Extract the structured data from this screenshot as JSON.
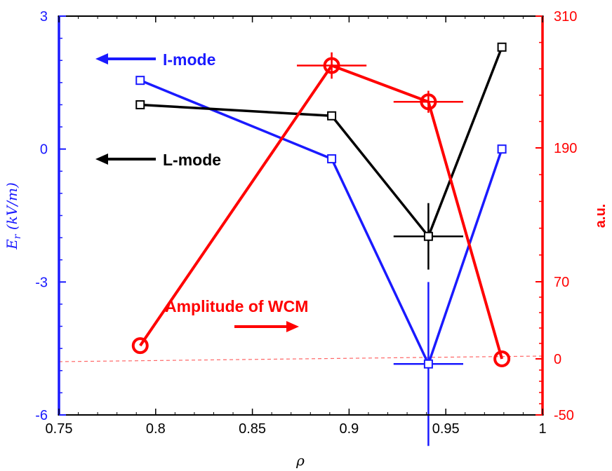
{
  "chart_data": {
    "type": "line",
    "title": "",
    "xlabel": "ρ",
    "ylabel_left_main": "E",
    "ylabel_left_sub": "r",
    "ylabel_left_unit": " (kV/m)",
    "ylabel_right": "a.u.",
    "xlim": [
      0.75,
      1.0
    ],
    "ylim_left": [
      -6,
      3
    ],
    "ylim_right": [
      -50,
      310
    ],
    "x_ticks": [
      "0.75",
      "0.8",
      "0.85",
      "0.9",
      "0.95",
      "1"
    ],
    "y_left_ticks": [
      "-6",
      "-3",
      "0",
      "3"
    ],
    "y_right_ticks": [
      "-50",
      "0",
      "70",
      "190",
      "310"
    ],
    "colors": {
      "left_axis": "#1a1aff",
      "right_axis": "#ff0000",
      "imode": "#1a1aff",
      "lmode": "#000000",
      "wcm": "#ff0000",
      "baseline": "#ff6666",
      "frame": "#000000"
    },
    "series": [
      {
        "name": "I-mode",
        "axis": "left",
        "marker": "square",
        "x": [
          0.792,
          0.891,
          0.941,
          0.979
        ],
        "y": [
          1.55,
          -0.22,
          -4.85,
          0.0
        ],
        "errors": [
          null,
          null,
          {
            "xerr": 0.018,
            "yerr": 1.85
          },
          null
        ]
      },
      {
        "name": "L-mode",
        "axis": "left",
        "marker": "square",
        "x": [
          0.792,
          0.891,
          0.941,
          0.979
        ],
        "y": [
          1.0,
          0.75,
          -1.97,
          2.3
        ],
        "errors": [
          null,
          null,
          {
            "xerr": 0.018,
            "yerr": 0.75
          },
          null
        ]
      },
      {
        "name": "Amplitude of WCM",
        "axis": "right",
        "marker": "circle",
        "x": [
          0.792,
          0.891,
          0.941,
          0.979
        ],
        "y": [
          12,
          265,
          232,
          0
        ],
        "errors": [
          null,
          {
            "xerr": 0.018,
            "yerr": 12
          },
          {
            "xerr": 0.018,
            "yerr": 10
          },
          null
        ]
      }
    ],
    "baseline": {
      "axis": "right",
      "y": 0,
      "style": "dashed"
    },
    "annotations": [
      {
        "text": "I-mode",
        "arrow": "left",
        "series": "I-mode"
      },
      {
        "text": "L-mode",
        "arrow": "left",
        "series": "L-mode"
      },
      {
        "text": "Amplitude of WCM",
        "arrow": "right",
        "series": "Amplitude of WCM"
      }
    ]
  }
}
